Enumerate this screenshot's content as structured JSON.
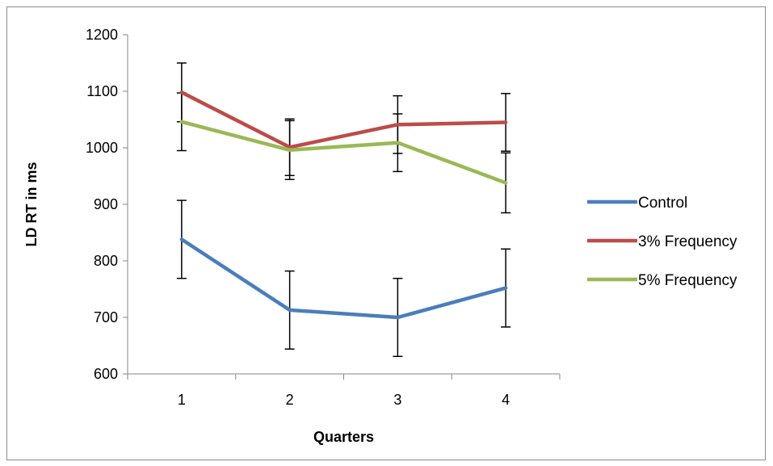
{
  "chart_data": {
    "type": "line",
    "title": "",
    "xlabel": "Quarters",
    "ylabel": "LD RT in ms",
    "categories": [
      "1",
      "2",
      "3",
      "4"
    ],
    "ylim": [
      600,
      1200
    ],
    "yticks": [
      600,
      700,
      800,
      900,
      1000,
      1100,
      1200
    ],
    "grid": false,
    "legend_position": "right",
    "error_bars": true,
    "series": [
      {
        "name": "Control",
        "color": "#4a7ebb",
        "values": [
          838,
          713,
          700,
          752
        ],
        "error": [
          69,
          69,
          69,
          69
        ]
      },
      {
        "name": "3% Frequency",
        "color": "#be4b48",
        "values": [
          1098,
          1001,
          1041,
          1045
        ],
        "error": [
          52,
          50,
          51,
          51
        ]
      },
      {
        "name": "5% Frequency",
        "color": "#98b954",
        "values": [
          1046,
          996,
          1009,
          938
        ],
        "error": [
          51,
          52,
          51,
          53
        ]
      }
    ]
  }
}
